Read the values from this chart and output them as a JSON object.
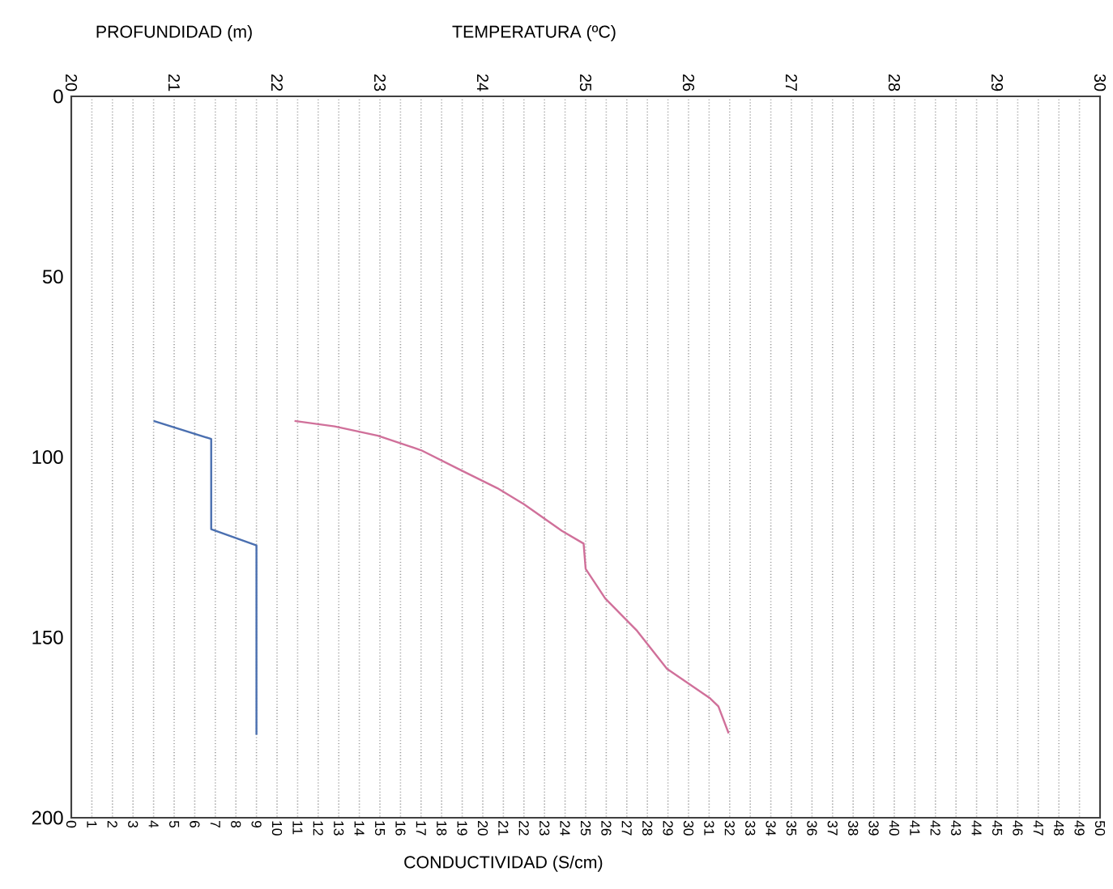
{
  "chart_data": {
    "type": "line",
    "xlabel": "CONDUCTIVIDAD (S/cm)",
    "x2label": "TEMPERATURA (ºC)",
    "ylabel": "PROFUNDIDAD (m)",
    "xlim": [
      0,
      50
    ],
    "xticks": [
      0,
      1,
      2,
      3,
      4,
      5,
      6,
      7,
      8,
      9,
      10,
      11,
      12,
      13,
      14,
      15,
      16,
      17,
      18,
      19,
      20,
      21,
      22,
      23,
      24,
      25,
      26,
      27,
      28,
      29,
      30,
      31,
      32,
      33,
      34,
      35,
      36,
      37,
      38,
      39,
      40,
      41,
      42,
      43,
      44,
      45,
      46,
      47,
      48,
      49,
      50
    ],
    "x2lim": [
      20,
      30
    ],
    "x2ticks": [
      20,
      21,
      22,
      23,
      24,
      25,
      26,
      27,
      28,
      29,
      30
    ],
    "ylim": [
      200,
      0
    ],
    "yticks": [
      0,
      50,
      100,
      150,
      200
    ],
    "grid": "x",
    "series": [
      {
        "color": "#4a6fb0",
        "x": [
          4,
          6.8,
          6.8,
          9,
          9
        ],
        "values": [
          90,
          95,
          120,
          124.5,
          177
        ]
      },
      {
        "color": "#d0709a",
        "axis": "x2",
        "x": [
          22.17,
          22.56,
          22.98,
          23.4,
          23.77,
          24.14,
          24.4,
          24.77,
          24.98,
          25.0,
          25.19,
          25.5,
          25.79,
          26.21,
          26.29,
          26.39
        ],
        "values": [
          90,
          91.5,
          94.1,
          98.1,
          103.4,
          108.6,
          113.1,
          120.5,
          124,
          131,
          139.2,
          148.2,
          158.7,
          166.9,
          169.1,
          176.6
        ]
      }
    ]
  }
}
